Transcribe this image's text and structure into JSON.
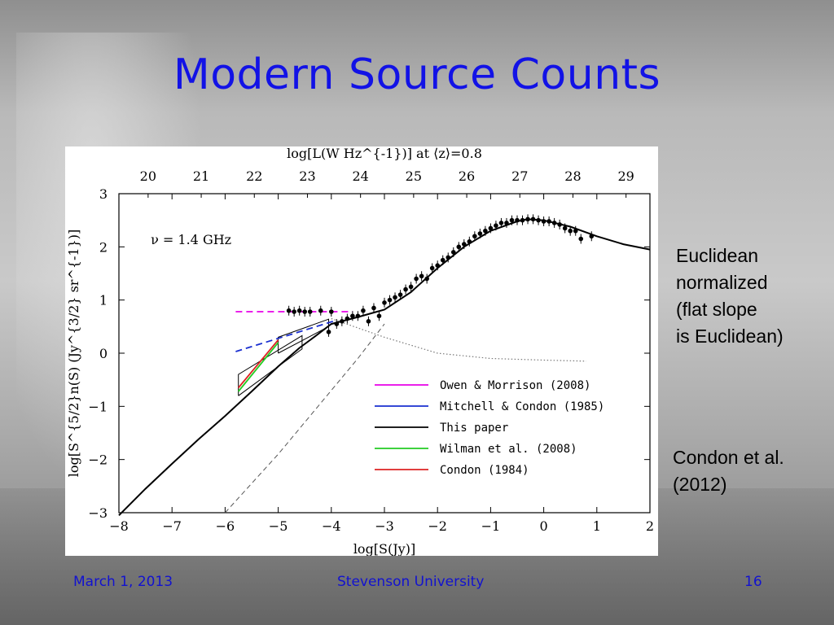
{
  "slide": {
    "title": "Modern Source Counts",
    "footer_date": "March 1, 2013",
    "footer_org": "Stevenson University",
    "footer_page": "16",
    "note_euclidean": [
      "Euclidean",
      "normalized",
      "(flat slope",
      "is Euclidean)"
    ],
    "note_condon": [
      "Condon et al.",
      "(2012)"
    ]
  },
  "chart_data": {
    "type": "line",
    "xlabel": "log[S(Jy)]",
    "ylabel": "log[S^{5/2}n(S) (Jy^{3/2} sr^{-1})]",
    "top_xlabel": "log[L(W Hz^{-1})] at ⟨z⟩=0.8",
    "annotation": "ν = 1.4 GHz",
    "xlim": [
      -8,
      2
    ],
    "ylim": [
      -3,
      3
    ],
    "xticks": [
      "−8",
      "−7",
      "−6",
      "−5",
      "−4",
      "−3",
      "−2",
      "−1",
      "0",
      "1",
      "2"
    ],
    "yticks": [
      "−3",
      "−2",
      "−1",
      "0",
      "1",
      "2",
      "3"
    ],
    "top_xticks": [
      "20",
      "21",
      "22",
      "23",
      "24",
      "25",
      "26",
      "27",
      "28",
      "29"
    ],
    "top_xtick_positions": [
      -7.45,
      -6.45,
      -5.45,
      -4.45,
      -3.45,
      -2.45,
      -1.45,
      -0.45,
      0.55,
      1.55
    ],
    "legend_position": "lower-right",
    "series": [
      {
        "name": "Owen & Morrison (2008)",
        "color": "#e800e8",
        "style": "dashed",
        "x": [
          -5.8,
          -3.6
        ],
        "y": [
          0.78,
          0.78
        ]
      },
      {
        "name": "Mitchell & Condon (1985)",
        "color": "#1a2fd0",
        "style": "dashed",
        "x": [
          -5.8,
          -3.9
        ],
        "y": [
          0.03,
          0.62
        ]
      },
      {
        "name": "This paper",
        "color": "#000000",
        "style": "solid",
        "x": [
          -8.0,
          -7.5,
          -7.0,
          -6.5,
          -6.0,
          -5.5,
          -5.0,
          -4.6,
          -4.3,
          -4.0,
          -3.5,
          -3.0,
          -2.5,
          -2.0,
          -1.5,
          -1.0,
          -0.5,
          -0.3,
          0.0,
          0.5,
          1.0,
          1.5,
          2.0
        ],
        "y": [
          -3.05,
          -2.55,
          -2.08,
          -1.62,
          -1.18,
          -0.72,
          -0.25,
          0.1,
          0.32,
          0.55,
          0.68,
          0.82,
          1.15,
          1.6,
          2.0,
          2.3,
          2.48,
          2.52,
          2.5,
          2.38,
          2.2,
          2.05,
          1.95
        ]
      },
      {
        "name": "Wilman et al. (2008)",
        "color": "#22cc22",
        "style": "solid",
        "x": [
          -5.75,
          -5.0
        ],
        "y": [
          -0.72,
          0.2
        ]
      },
      {
        "name": "Condon (1984)",
        "color": "#dd2222",
        "style": "solid",
        "x": [
          -5.75,
          -5.0
        ],
        "y": [
          -0.65,
          0.25
        ]
      }
    ],
    "components": [
      {
        "style": "dashed-gray",
        "x": [
          -6.0,
          -5.0,
          -4.0,
          -3.5,
          -3.0
        ],
        "y": [
          -3.0,
          -1.9,
          -0.7,
          -0.1,
          0.55
        ]
      },
      {
        "style": "dotted-gray",
        "x": [
          -4.0,
          -3.0,
          -2.0,
          -1.0,
          0.0,
          0.8
        ],
        "y": [
          0.65,
          0.3,
          0.0,
          -0.1,
          -0.13,
          -0.15
        ]
      }
    ],
    "error_boxes": [
      {
        "x": [
          -5.75,
          -4.55
        ],
        "y_low": [
          -0.8,
          0.08
        ],
        "y_high": [
          -0.4,
          0.33
        ]
      },
      {
        "x": [
          -5.0,
          -4.05
        ],
        "y_low": [
          0.0,
          0.5
        ],
        "y_high": [
          0.3,
          0.64
        ]
      }
    ],
    "data_points": {
      "x": [
        -4.8,
        -4.7,
        -4.6,
        -4.5,
        -4.4,
        -4.2,
        -4.0,
        -4.05,
        -3.9,
        -3.8,
        -3.7,
        -3.6,
        -3.5,
        -3.4,
        -3.3,
        -3.2,
        -3.1,
        -3.0,
        -2.9,
        -2.8,
        -2.7,
        -2.6,
        -2.5,
        -2.4,
        -2.3,
        -2.2,
        -2.1,
        -2.0,
        -1.9,
        -1.8,
        -1.7,
        -1.6,
        -1.5,
        -1.4,
        -1.3,
        -1.2,
        -1.1,
        -1.0,
        -0.9,
        -0.8,
        -0.7,
        -0.6,
        -0.5,
        -0.4,
        -0.3,
        -0.2,
        -0.1,
        0.0,
        0.1,
        0.2,
        0.3,
        0.4,
        0.5,
        0.6,
        0.7,
        0.9
      ],
      "y": [
        0.8,
        0.78,
        0.8,
        0.78,
        0.78,
        0.8,
        0.78,
        0.4,
        0.55,
        0.6,
        0.65,
        0.7,
        0.7,
        0.8,
        0.6,
        0.85,
        0.7,
        0.95,
        1.0,
        1.05,
        1.1,
        1.2,
        1.25,
        1.4,
        1.45,
        1.4,
        1.6,
        1.65,
        1.75,
        1.8,
        1.9,
        2.0,
        2.05,
        2.1,
        2.2,
        2.25,
        2.3,
        2.35,
        2.4,
        2.45,
        2.45,
        2.5,
        2.5,
        2.5,
        2.52,
        2.52,
        2.5,
        2.48,
        2.48,
        2.45,
        2.42,
        2.35,
        2.3,
        2.3,
        2.15,
        2.2
      ]
    }
  }
}
